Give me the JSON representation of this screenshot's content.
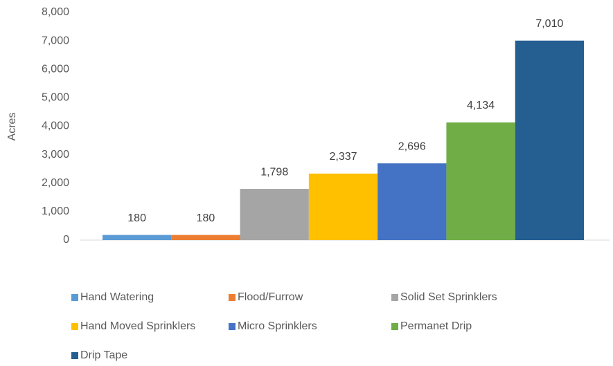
{
  "chart_data": {
    "type": "bar",
    "y_label": "Acres",
    "series": [
      {
        "name": "Hand Watering",
        "color": "#5b9bd5",
        "values": [
          180
        ]
      },
      {
        "name": "Flood/Furrow",
        "color": "#ed7d31",
        "values": [
          180
        ]
      },
      {
        "name": "Solid Set Sprinklers",
        "color": "#a5a5a5",
        "values": [
          1798
        ],
        "value_labels": [
          "1,798"
        ]
      },
      {
        "name": "Hand Moved Sprinklers",
        "color": "#ffc000",
        "values": [
          2337
        ],
        "value_labels": [
          "2,337"
        ]
      },
      {
        "name": "Micro Sprinklers",
        "color": "#4472c4",
        "values": [
          2696
        ],
        "value_labels": [
          "2,696"
        ]
      },
      {
        "name": "Permanet Drip",
        "color": "#70ad47",
        "values": [
          4134
        ],
        "value_labels": [
          "4,134"
        ]
      },
      {
        "name": "Drip Tape",
        "color": "#255e91",
        "values": [
          7010
        ],
        "value_labels": [
          "7,010"
        ]
      }
    ],
    "ylim": [
      0,
      8000
    ],
    "yticks": [
      0,
      {
        "value": 1000,
        "label": "1,000"
      },
      {
        "value": 2000,
        "label": "2,000"
      },
      {
        "value": 3000,
        "label": "3,000"
      },
      {
        "value": 4000,
        "label": "4,000"
      },
      {
        "value": 5000,
        "label": "5,000"
      },
      {
        "value": 6000,
        "label": "6,000"
      },
      {
        "value": 7000,
        "label": "7,000"
      },
      {
        "value": 8000,
        "label": "8,000"
      }
    ],
    "grid": false,
    "legend": "bottom"
  }
}
